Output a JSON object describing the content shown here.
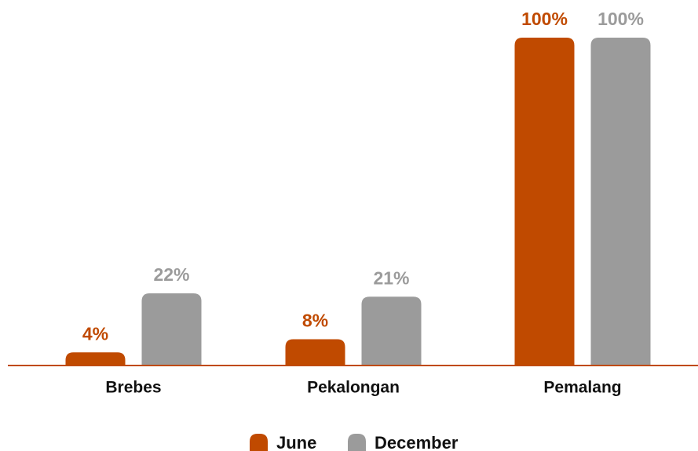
{
  "chart_data": {
    "type": "bar",
    "categories": [
      "Brebes",
      "Pekalongan",
      "Pemalang"
    ],
    "series": [
      {
        "name": "June",
        "color": "#c04a00",
        "values": [
          4,
          8,
          100
        ],
        "value_labels": [
          "4%",
          "8%",
          "100%"
        ]
      },
      {
        "name": "December",
        "color": "#9b9b9b",
        "values": [
          22,
          21,
          100
        ],
        "value_labels": [
          "22%",
          "21%",
          "100%"
        ]
      }
    ],
    "ylim": [
      0,
      100
    ],
    "grid": false,
    "legend": "bottom"
  }
}
